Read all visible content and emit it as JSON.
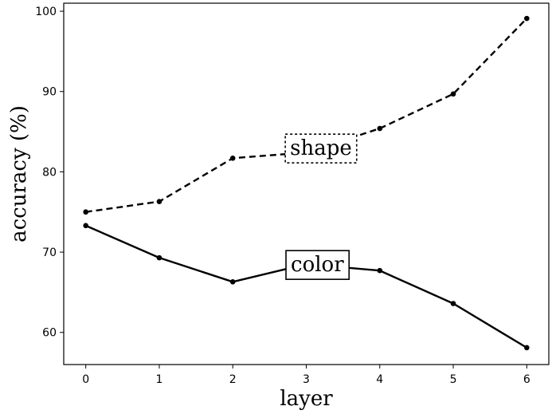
{
  "chart_data": {
    "type": "line",
    "xlabel": "layer",
    "ylabel": "accuracy (%)",
    "x": [
      0,
      1,
      2,
      3,
      4,
      5,
      6
    ],
    "xticks": [
      "0",
      "1",
      "2",
      "3",
      "4",
      "5",
      "6"
    ],
    "yticks": [
      "60",
      "70",
      "80",
      "90",
      "100"
    ],
    "xlim": [
      -0.3,
      6.3
    ],
    "ylim": [
      56,
      101
    ],
    "grid": false,
    "series": [
      {
        "name": "shape",
        "style": "dashed",
        "color": "#000000",
        "values": [
          75.0,
          76.3,
          81.7,
          82.4,
          85.4,
          89.7,
          99.1
        ],
        "label_box": "dotted",
        "label_at": [
          3.2,
          82.9
        ]
      },
      {
        "name": "color",
        "style": "solid",
        "color": "#000000",
        "values": [
          73.3,
          69.3,
          66.3,
          68.5,
          67.7,
          63.6,
          58.1
        ],
        "label_box": "solid",
        "label_at": [
          3.15,
          68.4
        ]
      }
    ]
  }
}
